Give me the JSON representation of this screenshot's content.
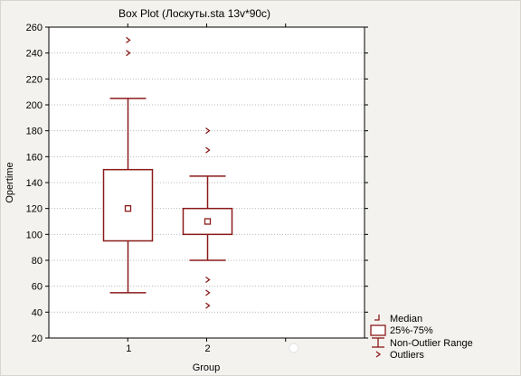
{
  "chart_data": {
    "type": "boxplot",
    "title": "Box Plot (Лоскуты.sta 13v*90c)",
    "xlabel": "Group",
    "ylabel": "Opertime",
    "ylim": [
      20,
      260
    ],
    "yticks": [
      20,
      40,
      60,
      80,
      100,
      120,
      140,
      160,
      180,
      200,
      220,
      240,
      260
    ],
    "xlim": [
      0,
      4
    ],
    "grid": true,
    "legend_position": "bottom-right",
    "colors": {
      "series": "#8b1a1a",
      "grid": "#b8b8b8",
      "background": "#ffffff"
    },
    "categories": [
      "1",
      "2"
    ],
    "boxes": [
      {
        "x": 1,
        "label": "1",
        "median": 120,
        "q1": 95,
        "q3": 150,
        "whisker_low": 55,
        "whisker_high": 205,
        "outliers": [
          240,
          250
        ]
      },
      {
        "x": 2,
        "label": "2",
        "median": 110,
        "q1": 100,
        "q3": 120,
        "whisker_low": 80,
        "whisker_high": 145,
        "outliers": [
          45,
          55,
          65,
          165,
          180
        ]
      }
    ],
    "legend": [
      "Median",
      "25%-75%",
      "Non-Outlier Range",
      "Outliers"
    ]
  }
}
